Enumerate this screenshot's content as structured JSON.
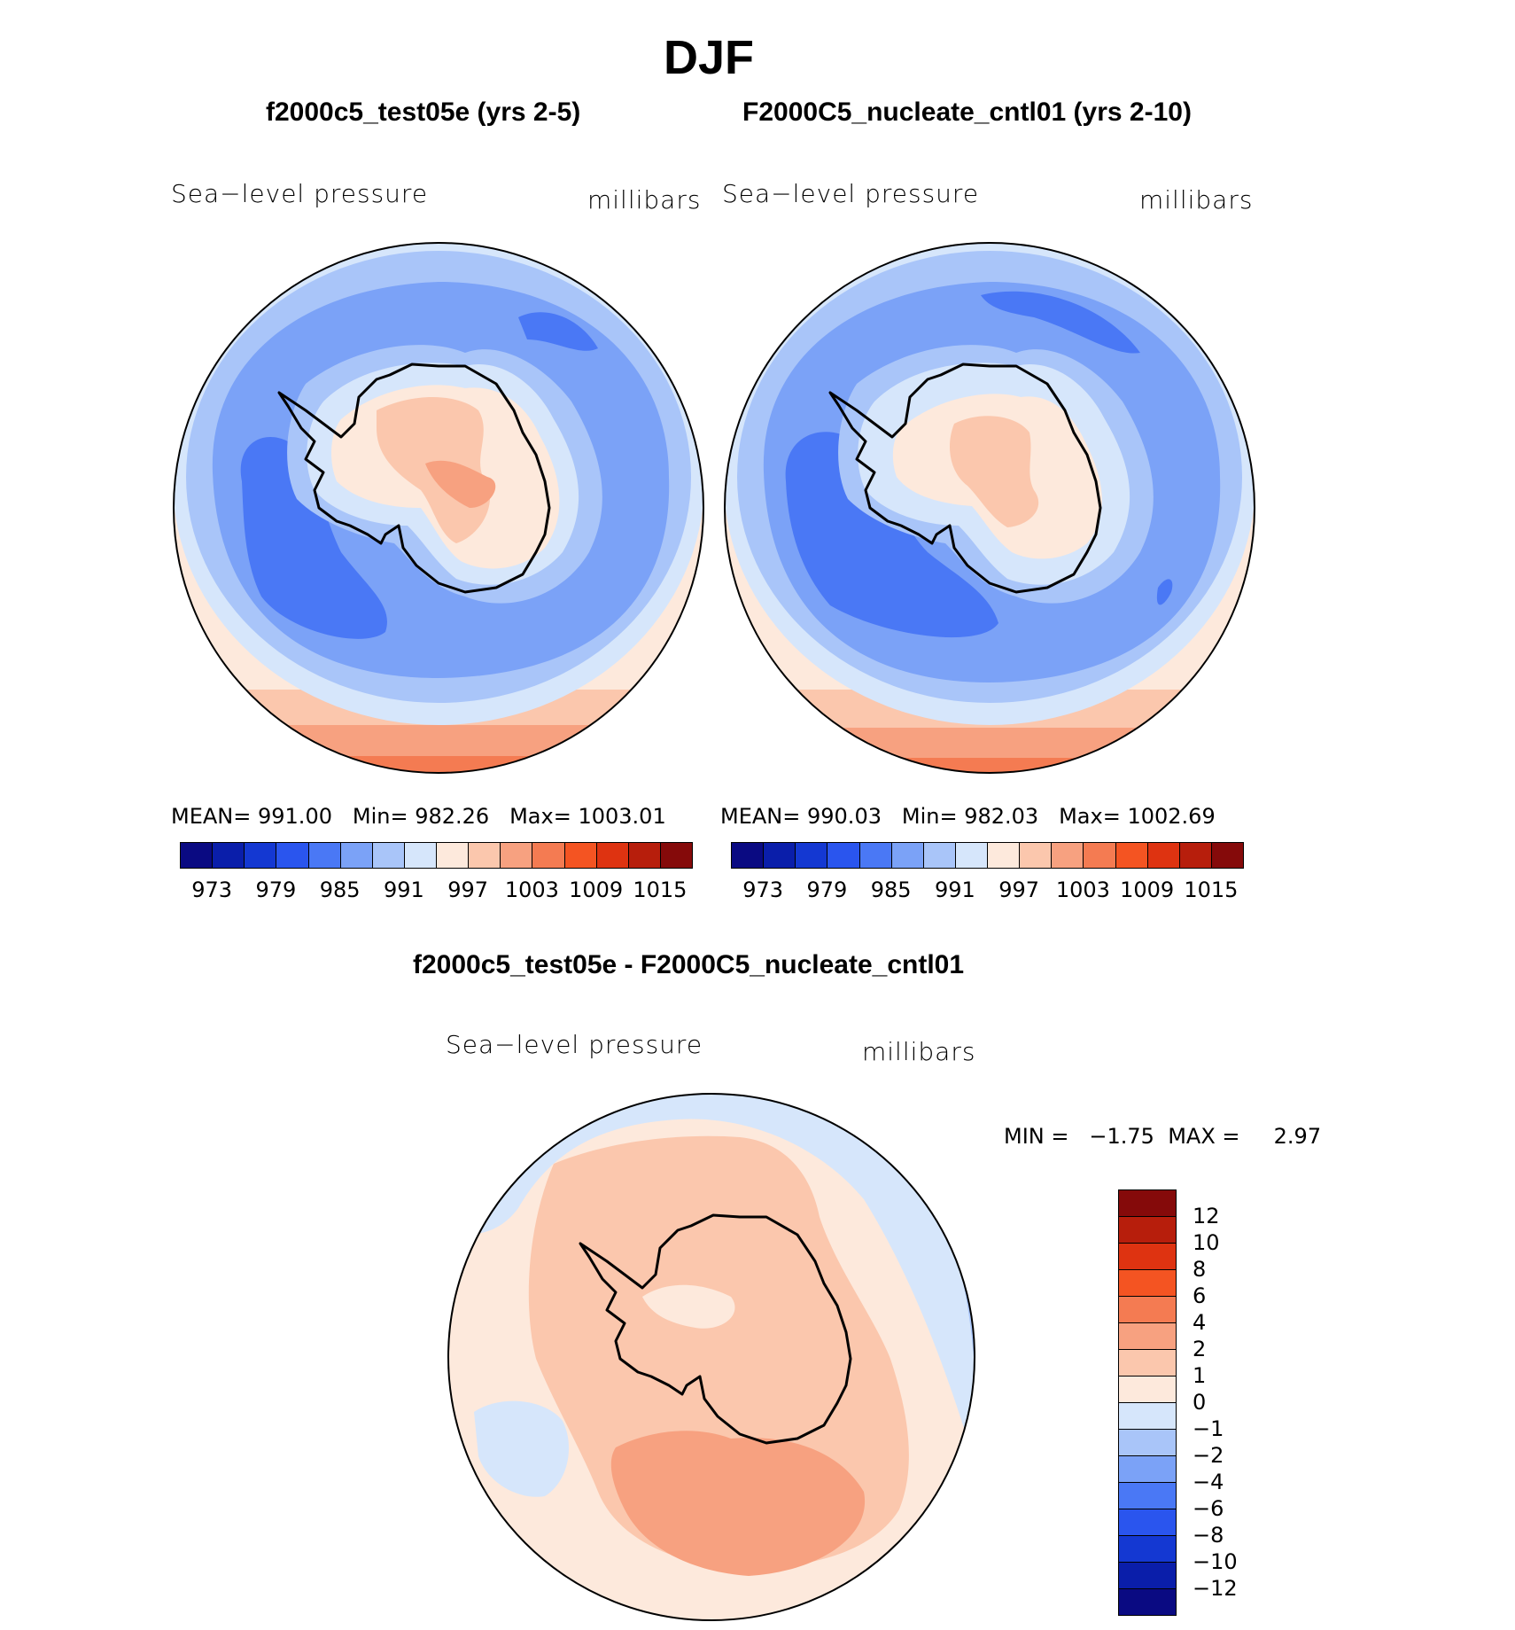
{
  "page": {
    "season_title": "DJF"
  },
  "panels": [
    {
      "title": "f2000c5_test05e (yrs 2-5)",
      "variable": "Sea−level pressure",
      "units": "millibars",
      "stats": {
        "mean_label": "MEAN=",
        "mean": "991.00",
        "min_label": "Min=",
        "min": "982.26",
        "max_label": "Max=",
        "max": "1003.01"
      }
    },
    {
      "title": "F2000C5_nucleate_cntl01 (yrs 2-10)",
      "variable": "Sea−level pressure",
      "units": "millibars",
      "stats": {
        "mean_label": "MEAN=",
        "mean": "990.03",
        "min_label": "Min=",
        "min": "982.03",
        "max_label": "Max=",
        "max": "1002.69"
      }
    }
  ],
  "colorbar": {
    "colors": [
      "#0a0a82",
      "#0a1eaa",
      "#1438d2",
      "#2a55ee",
      "#4a78f5",
      "#7ba2f7",
      "#a9c5f9",
      "#d6e6fb",
      "#fde9dc",
      "#fbc7ad",
      "#f7a180",
      "#f47b52",
      "#f45422",
      "#de3311",
      "#b71e0c",
      "#850a0a"
    ],
    "labels": [
      "973",
      "979",
      "985",
      "991",
      "997",
      "1003",
      "1009",
      "1015"
    ]
  },
  "diff_panel": {
    "title": "f2000c5_test05e - F2000C5_nucleate_cntl01",
    "variable": "Sea−level pressure",
    "units": "millibars",
    "min_label": "MIN =",
    "min": "−1.75",
    "max_label": "MAX =",
    "max": "2.97",
    "colorbar": {
      "colors_top_to_bottom": [
        "#850a0a",
        "#b71e0c",
        "#de3311",
        "#f45422",
        "#f47b52",
        "#f7a180",
        "#fbc7ad",
        "#fde9dc",
        "#d6e6fb",
        "#a9c5f9",
        "#7ba2f7",
        "#4a78f5",
        "#2a55ee",
        "#1438d2",
        "#0a1eaa",
        "#0a0a82"
      ],
      "labels": [
        "12",
        "10",
        "8",
        "6",
        "4",
        "2",
        "1",
        "0",
        "−1",
        "−2",
        "−4",
        "−6",
        "−8",
        "−10",
        "−12"
      ]
    }
  }
}
